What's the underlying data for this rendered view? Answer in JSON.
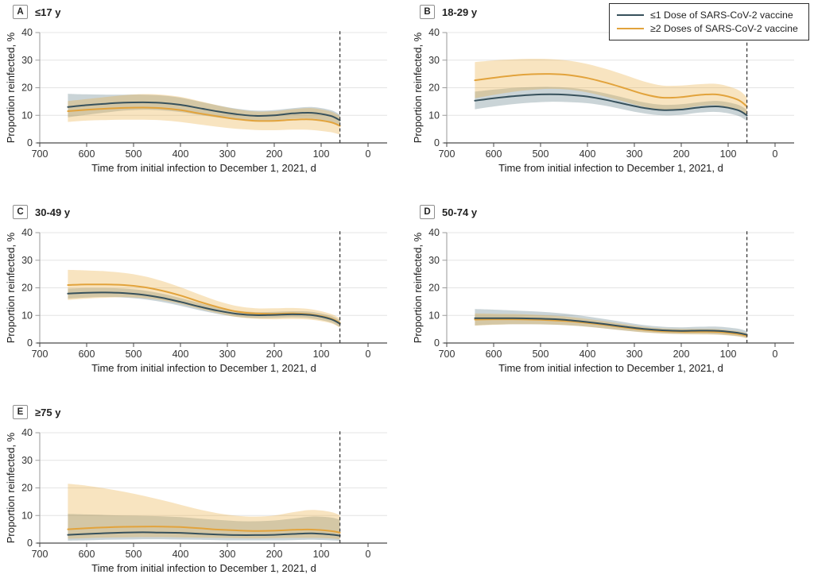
{
  "figure": {
    "background": "#ffffff",
    "legend": {
      "border_color": "#2b2b2b",
      "items": [
        {
          "label": "≤1 Dose of SARS-CoV-2 vaccine",
          "color": "#37515c"
        },
        {
          "label": "≥2 Doses of SARS-CoV-2 vaccine",
          "color": "#e2a33c"
        }
      ]
    },
    "styles": {
      "grid_color": "#e4e4e4",
      "x_axis_color": "#4a4a4a",
      "y_axis_color": "#9a9a9a",
      "tick_label_color": "#333333",
      "axis_title_color": "#1a1a1a",
      "vline_color": "#3a3a3a",
      "band_blue": "rgba(66,99,113,0.28)",
      "band_orange": "rgba(233,172,65,0.33)"
    }
  },
  "chart_data": [
    {
      "type": "line",
      "panel": "A",
      "title": "≤17 y",
      "xlabel": "Time from initial infection to December 1, 2021, d",
      "ylabel": "Proportion reinfected, %",
      "xlim": [
        700,
        0
      ],
      "x_reversed": true,
      "ylim": [
        0,
        40
      ],
      "xticks": [
        700,
        600,
        500,
        400,
        300,
        200,
        100,
        0
      ],
      "yticks": [
        0,
        10,
        20,
        30,
        40
      ],
      "grid": true,
      "vline_x": 60,
      "x": [
        640,
        600,
        560,
        520,
        480,
        440,
        400,
        360,
        320,
        280,
        240,
        200,
        160,
        120,
        80,
        60
      ],
      "series": [
        {
          "name": "≤1 Dose of SARS-CoV-2 vaccine",
          "color": "#37515c",
          "band": "blue",
          "values": [
            13.0,
            13.7,
            14.2,
            14.6,
            14.7,
            14.5,
            13.8,
            12.6,
            11.4,
            10.4,
            9.8,
            10.0,
            10.7,
            10.9,
            9.8,
            8.2
          ],
          "upper": [
            17.8,
            17.6,
            17.5,
            17.5,
            17.5,
            17.2,
            16.4,
            15.0,
            13.6,
            12.4,
            11.7,
            11.9,
            12.6,
            13.0,
            11.9,
            10.3
          ],
          "lower": [
            9.3,
            10.2,
            11.0,
            11.7,
            12.0,
            11.8,
            11.2,
            10.2,
            9.2,
            8.4,
            7.9,
            8.1,
            8.8,
            8.8,
            7.7,
            6.1
          ]
        },
        {
          "name": "≥2 Doses of SARS-CoV-2 vaccine",
          "color": "#e2a33c",
          "band": "orange",
          "values": [
            11.5,
            12.0,
            12.4,
            12.7,
            12.8,
            12.6,
            11.9,
            10.7,
            9.6,
            8.6,
            8.0,
            8.0,
            8.4,
            8.5,
            7.5,
            6.2
          ],
          "upper": [
            15.2,
            15.9,
            16.6,
            17.3,
            17.7,
            17.5,
            16.7,
            15.2,
            13.6,
            12.2,
            11.4,
            11.5,
            12.2,
            12.6,
            11.4,
            9.7
          ],
          "lower": [
            7.6,
            8.1,
            8.3,
            8.4,
            8.4,
            8.2,
            7.6,
            6.7,
            5.8,
            5.1,
            4.7,
            4.6,
            4.8,
            4.7,
            3.9,
            3.0
          ]
        }
      ]
    },
    {
      "type": "line",
      "panel": "B",
      "title": "18-29 y",
      "xlabel": "Time from initial infection to December 1, 2021, d",
      "ylabel": "Proportion reinfected, %",
      "xlim": [
        700,
        0
      ],
      "x_reversed": true,
      "ylim": [
        0,
        40
      ],
      "xticks": [
        700,
        600,
        500,
        400,
        300,
        200,
        100,
        0
      ],
      "yticks": [
        0,
        10,
        20,
        30,
        40
      ],
      "grid": true,
      "vline_x": 60,
      "x": [
        640,
        600,
        560,
        520,
        480,
        440,
        400,
        360,
        320,
        280,
        240,
        200,
        160,
        120,
        80,
        60
      ],
      "series": [
        {
          "name": "≤1 Dose of SARS-CoV-2 vaccine",
          "color": "#37515c",
          "band": "blue",
          "values": [
            15.3,
            16.2,
            16.9,
            17.4,
            17.6,
            17.4,
            16.8,
            15.6,
            14.1,
            12.7,
            11.9,
            12.1,
            12.9,
            13.2,
            11.9,
            10.0
          ],
          "upper": [
            18.6,
            19.3,
            19.9,
            20.2,
            20.3,
            20.0,
            19.2,
            17.9,
            16.3,
            14.7,
            13.8,
            14.0,
            14.8,
            15.2,
            13.9,
            12.0
          ],
          "lower": [
            12.2,
            13.2,
            14.0,
            14.6,
            14.9,
            14.8,
            14.4,
            13.4,
            12.0,
            10.7,
            10.0,
            10.2,
            11.0,
            11.2,
            9.9,
            8.0
          ]
        },
        {
          "name": "≥2 Doses of SARS-CoV-2 vaccine",
          "color": "#e2a33c",
          "band": "orange",
          "values": [
            22.7,
            23.6,
            24.4,
            24.9,
            25.0,
            24.6,
            23.5,
            21.8,
            19.8,
            17.7,
            16.4,
            16.6,
            17.4,
            17.5,
            15.7,
            13.2
          ],
          "upper": [
            29.3,
            29.9,
            30.3,
            30.5,
            30.4,
            29.8,
            28.6,
            26.8,
            24.6,
            22.3,
            20.8,
            20.8,
            21.3,
            21.3,
            19.3,
            16.6
          ],
          "lower": [
            16.2,
            17.4,
            18.5,
            19.2,
            19.6,
            19.3,
            18.3,
            16.7,
            14.9,
            13.1,
            12.1,
            12.4,
            13.4,
            13.6,
            12.0,
            9.8
          ]
        }
      ]
    },
    {
      "type": "line",
      "panel": "C",
      "title": "30-49 y",
      "xlabel": "Time from initial infection to December 1, 2021, d",
      "ylabel": "Proportion reinfected, %",
      "xlim": [
        700,
        0
      ],
      "x_reversed": true,
      "ylim": [
        0,
        40
      ],
      "xticks": [
        700,
        600,
        500,
        400,
        300,
        200,
        100,
        0
      ],
      "yticks": [
        0,
        10,
        20,
        30,
        40
      ],
      "grid": true,
      "vline_x": 60,
      "x": [
        640,
        600,
        560,
        520,
        480,
        440,
        400,
        360,
        320,
        280,
        240,
        200,
        160,
        120,
        80,
        60
      ],
      "series": [
        {
          "name": "≤1 Dose of SARS-CoV-2 vaccine",
          "color": "#37515c",
          "band": "blue",
          "values": [
            17.9,
            18.2,
            18.3,
            18.1,
            17.5,
            16.4,
            14.9,
            13.2,
            11.7,
            10.6,
            10.1,
            10.2,
            10.4,
            10.1,
            8.7,
            7.0
          ],
          "upper": [
            19.7,
            19.9,
            19.9,
            19.7,
            19.1,
            17.9,
            16.3,
            14.5,
            12.9,
            11.7,
            11.2,
            11.3,
            11.5,
            11.3,
            9.9,
            8.3
          ],
          "lower": [
            16.1,
            16.5,
            16.7,
            16.5,
            15.9,
            14.9,
            13.5,
            11.9,
            10.5,
            9.5,
            9.0,
            9.1,
            9.3,
            8.9,
            7.5,
            5.7
          ]
        },
        {
          "name": "≥2 Doses of SARS-CoV-2 vaccine",
          "color": "#e2a33c",
          "band": "orange",
          "values": [
            21.0,
            21.2,
            21.2,
            21.0,
            20.3,
            19.0,
            17.2,
            15.0,
            13.0,
            11.4,
            10.7,
            10.6,
            10.7,
            10.3,
            8.9,
            7.3
          ],
          "upper": [
            26.5,
            26.3,
            26.0,
            25.4,
            24.3,
            22.5,
            20.2,
            17.6,
            15.2,
            13.4,
            12.6,
            12.6,
            12.7,
            12.2,
            10.6,
            9.0
          ],
          "lower": [
            15.6,
            16.1,
            16.4,
            16.6,
            16.3,
            15.5,
            14.2,
            12.4,
            10.8,
            9.4,
            8.8,
            8.6,
            8.7,
            8.4,
            7.2,
            5.6
          ]
        }
      ]
    },
    {
      "type": "line",
      "panel": "D",
      "title": "50-74 y",
      "xlabel": "Time from initial infection to December 1, 2021, d",
      "ylabel": "Proportion reinfected, %",
      "xlim": [
        700,
        0
      ],
      "x_reversed": true,
      "ylim": [
        0,
        40
      ],
      "xticks": [
        700,
        600,
        500,
        400,
        300,
        200,
        100,
        0
      ],
      "yticks": [
        0,
        10,
        20,
        30,
        40
      ],
      "grid": true,
      "vline_x": 60,
      "x": [
        640,
        600,
        560,
        520,
        480,
        440,
        400,
        360,
        320,
        280,
        240,
        200,
        160,
        120,
        80,
        60
      ],
      "series": [
        {
          "name": "≤1 Dose of SARS-CoV-2 vaccine",
          "color": "#37515c",
          "band": "blue",
          "values": [
            9.0,
            9.0,
            9.0,
            8.9,
            8.7,
            8.3,
            7.6,
            6.8,
            5.9,
            5.1,
            4.6,
            4.4,
            4.5,
            4.4,
            3.7,
            3.0
          ],
          "upper": [
            12.3,
            12.1,
            11.8,
            11.5,
            11.1,
            10.5,
            9.6,
            8.6,
            7.5,
            6.5,
            5.9,
            5.7,
            5.9,
            5.9,
            5.2,
            4.3
          ],
          "lower": [
            6.4,
            6.7,
            6.8,
            6.8,
            6.7,
            6.4,
            5.9,
            5.2,
            4.5,
            3.9,
            3.5,
            3.3,
            3.3,
            3.1,
            2.5,
            1.8
          ]
        },
        {
          "name": "≥2 Doses of SARS-CoV-2 vaccine",
          "color": "#e2a33c",
          "band": "orange",
          "values": [
            8.5,
            8.6,
            8.6,
            8.5,
            8.3,
            7.9,
            7.3,
            6.5,
            5.6,
            4.8,
            4.3,
            4.1,
            4.1,
            4.0,
            3.3,
            2.6
          ],
          "upper": [
            10.7,
            10.6,
            10.5,
            10.3,
            10.0,
            9.5,
            8.7,
            7.8,
            6.8,
            5.9,
            5.3,
            5.1,
            5.1,
            5.0,
            4.3,
            3.5
          ],
          "lower": [
            6.3,
            6.6,
            6.8,
            6.8,
            6.7,
            6.4,
            5.9,
            5.2,
            4.5,
            3.8,
            3.4,
            3.2,
            3.1,
            3.0,
            2.4,
            1.7
          ]
        }
      ]
    },
    {
      "type": "line",
      "panel": "E",
      "title": "≥75 y",
      "xlabel": "Time from initial infection to December 1, 2021, d",
      "ylabel": "Proportion reinfected, %",
      "xlim": [
        700,
        0
      ],
      "x_reversed": true,
      "ylim": [
        0,
        40
      ],
      "xticks": [
        700,
        600,
        500,
        400,
        300,
        200,
        100,
        0
      ],
      "yticks": [
        0,
        10,
        20,
        30,
        40
      ],
      "grid": true,
      "vline_x": 60,
      "x": [
        640,
        600,
        560,
        520,
        480,
        440,
        400,
        360,
        320,
        280,
        240,
        200,
        160,
        120,
        80,
        60
      ],
      "series": [
        {
          "name": "≤1 Dose of SARS-CoV-2 vaccine",
          "color": "#37515c",
          "band": "blue",
          "values": [
            3.0,
            3.3,
            3.6,
            3.8,
            3.9,
            3.8,
            3.7,
            3.4,
            3.1,
            2.9,
            2.9,
            3.0,
            3.3,
            3.5,
            3.1,
            2.7
          ],
          "upper": [
            10.6,
            10.4,
            10.2,
            10.0,
            9.9,
            9.7,
            9.4,
            8.9,
            8.4,
            8.0,
            7.9,
            8.2,
            8.9,
            9.6,
            9.3,
            8.5
          ],
          "lower": [
            0.9,
            1.0,
            1.2,
            1.3,
            1.4,
            1.4,
            1.3,
            1.2,
            1.1,
            1.0,
            1.0,
            1.0,
            1.1,
            1.2,
            1.0,
            0.8
          ]
        },
        {
          "name": "≥2 Doses of SARS-CoV-2 vaccine",
          "color": "#e2a33c",
          "band": "orange",
          "values": [
            5.0,
            5.4,
            5.7,
            5.9,
            6.0,
            6.0,
            5.8,
            5.4,
            4.9,
            4.6,
            4.4,
            4.5,
            4.8,
            4.9,
            4.4,
            3.8
          ],
          "upper": [
            21.5,
            20.8,
            19.8,
            18.6,
            17.2,
            15.6,
            13.9,
            12.2,
            10.8,
            9.9,
            9.6,
            10.0,
            11.2,
            12.0,
            11.3,
            10.1
          ],
          "lower": [
            1.6,
            1.8,
            2.0,
            2.1,
            2.2,
            2.2,
            2.1,
            2.0,
            1.9,
            1.8,
            1.7,
            1.8,
            1.9,
            1.9,
            1.7,
            1.4
          ]
        }
      ]
    }
  ]
}
